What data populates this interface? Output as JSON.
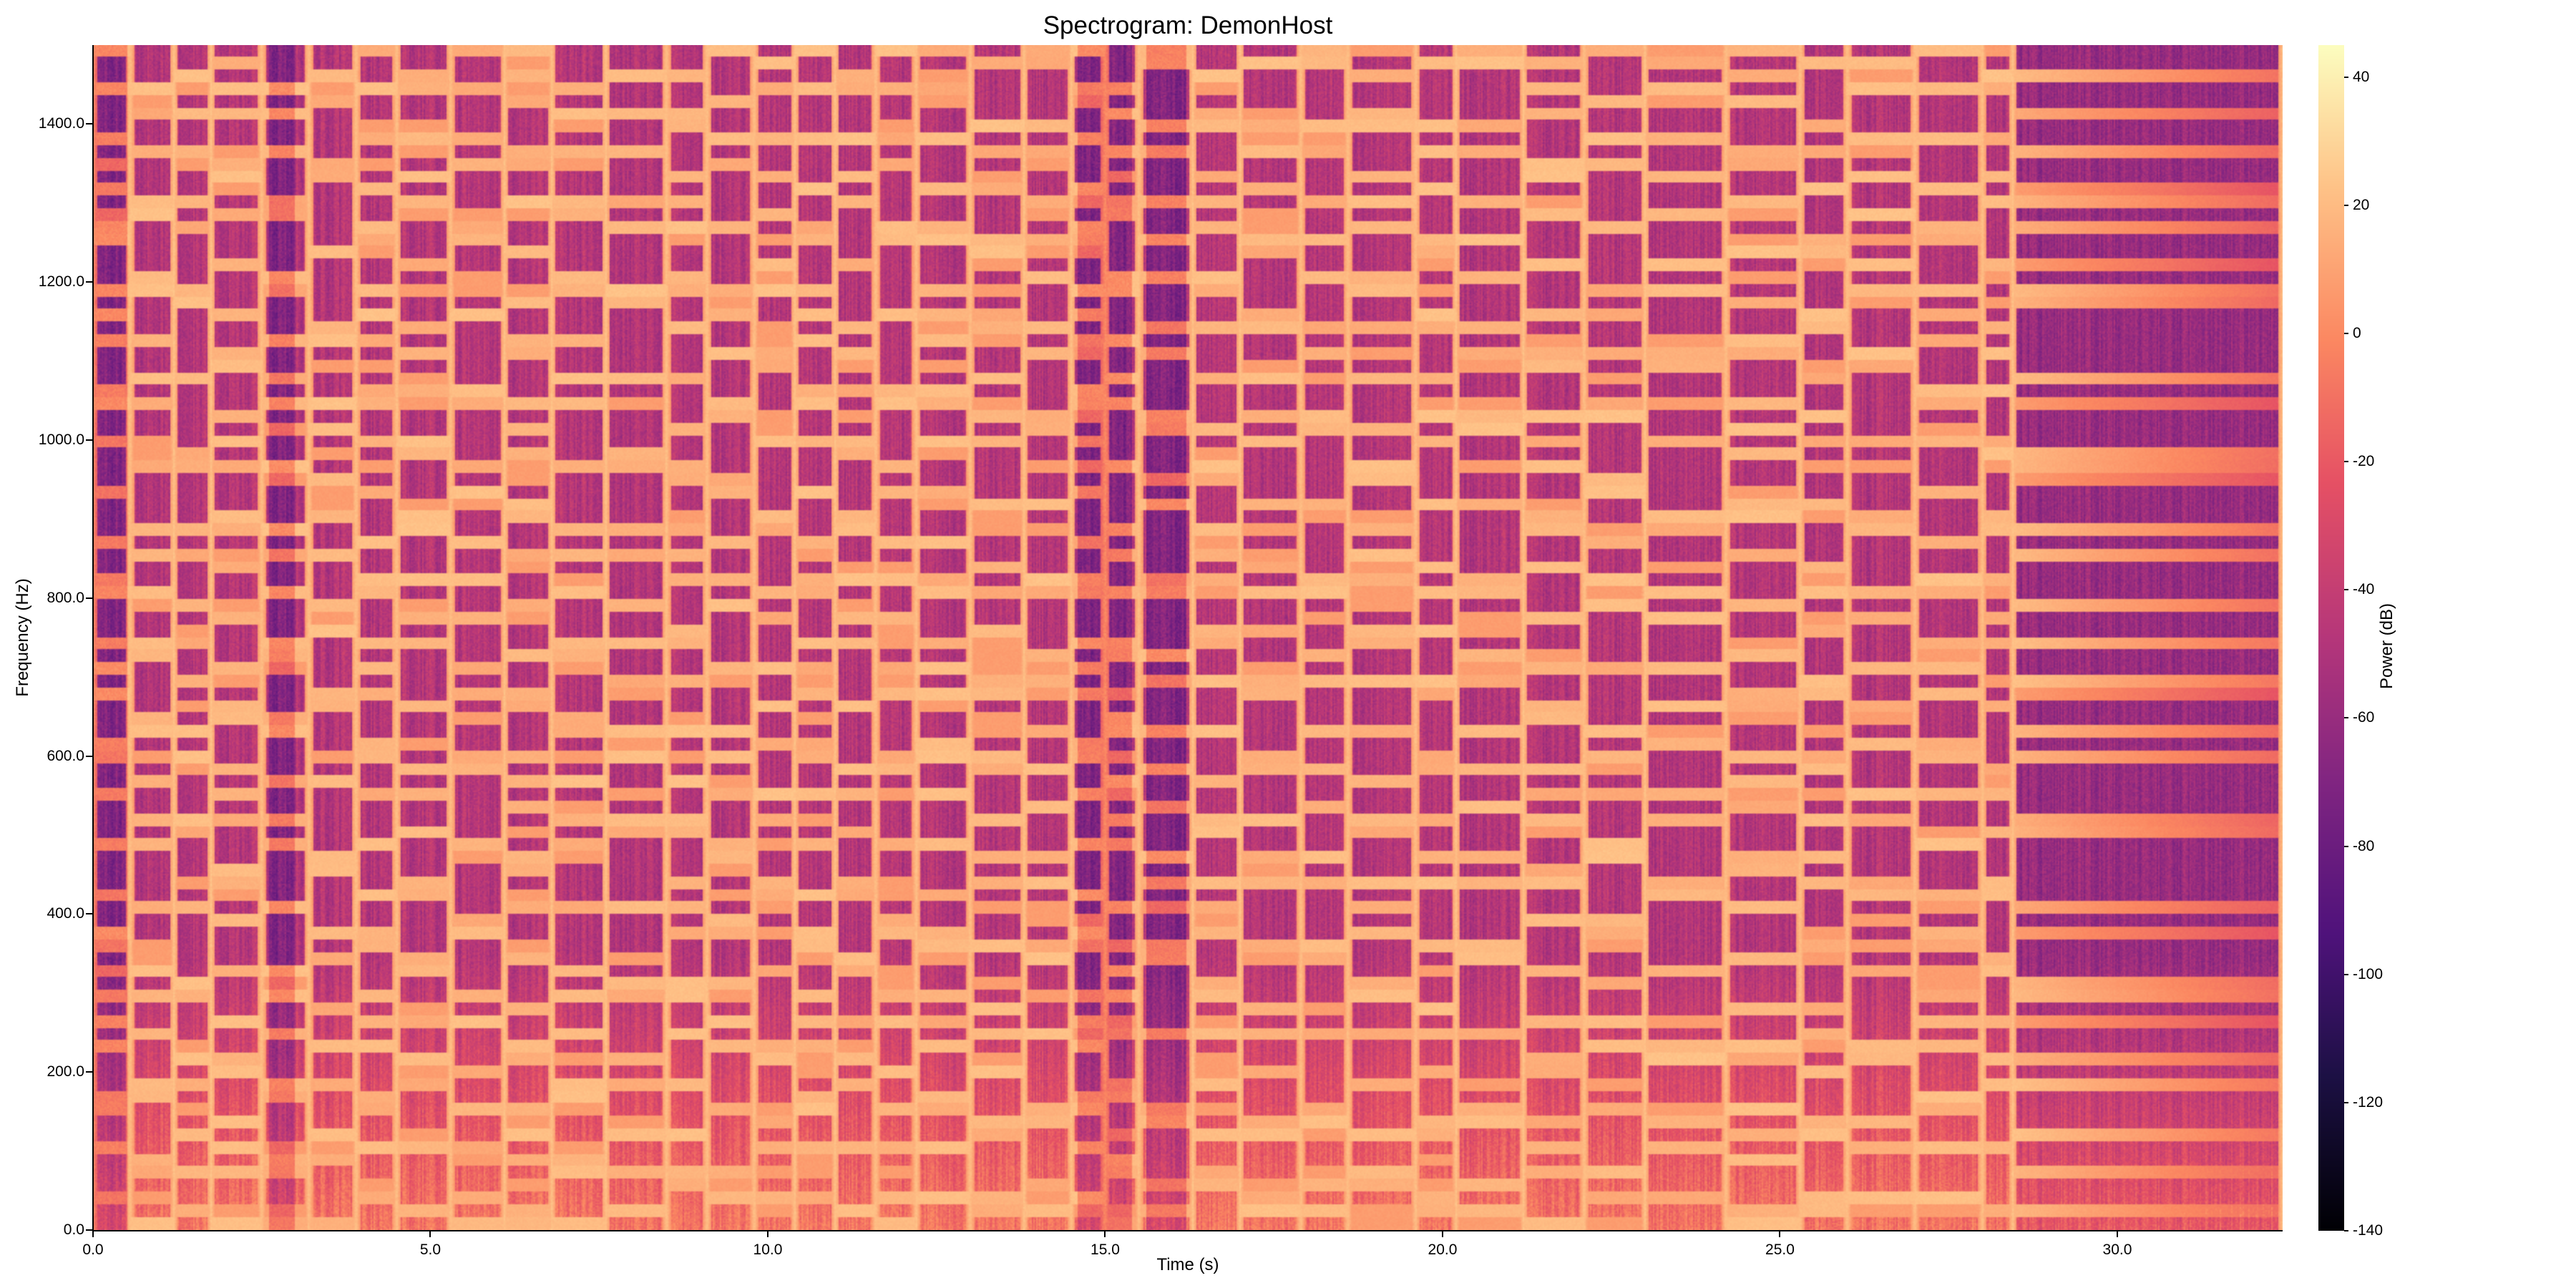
{
  "title": "Spectrogram: DemonHost",
  "x_axis": {
    "label": "Time (s)",
    "ticks": [
      {
        "value": 0,
        "label": "0.0"
      },
      {
        "value": 5,
        "label": "5.0"
      },
      {
        "value": 10,
        "label": "10.0"
      },
      {
        "value": 15,
        "label": "15.0"
      },
      {
        "value": 20,
        "label": "20.0"
      },
      {
        "value": 25,
        "label": "25.0"
      },
      {
        "value": 30,
        "label": "30.0"
      }
    ]
  },
  "y_axis": {
    "label": "Frequency (Hz)",
    "ticks": [
      {
        "value": 0,
        "label": "0.0"
      },
      {
        "value": 200,
        "label": "200.0"
      },
      {
        "value": 400,
        "label": "400.0"
      },
      {
        "value": 600,
        "label": "600.0"
      },
      {
        "value": 800,
        "label": "800.0"
      },
      {
        "value": 1000,
        "label": "1000.0"
      },
      {
        "value": 1200,
        "label": "1200.0"
      },
      {
        "value": 1400,
        "label": "1400.0"
      }
    ]
  },
  "colorbar": {
    "label": "Power (dB)",
    "colormap": "magma",
    "ticks": [
      {
        "value": 40,
        "label": "40"
      },
      {
        "value": 20,
        "label": "20"
      },
      {
        "value": 0,
        "label": "0"
      },
      {
        "value": -20,
        "label": "-20"
      },
      {
        "value": -40,
        "label": "-40"
      },
      {
        "value": -60,
        "label": "-60"
      },
      {
        "value": -80,
        "label": "-80"
      },
      {
        "value": -100,
        "label": "-100"
      },
      {
        "value": -120,
        "label": "-120"
      },
      {
        "value": -140,
        "label": "-140"
      }
    ]
  },
  "chart_data": {
    "type": "heatmap",
    "subtype": "spectrogram",
    "title": "Spectrogram: DemonHost",
    "xlabel": "Time (s)",
    "ylabel": "Frequency (Hz)",
    "colorbar_label": "Power (dB)",
    "colormap": "magma",
    "xlim": [
      0,
      32.45
    ],
    "ylim": [
      0,
      1500
    ],
    "clim": [
      -140,
      45
    ],
    "grid": false,
    "x_ticks": [
      0,
      5,
      10,
      15,
      20,
      25,
      30
    ],
    "y_ticks": [
      0,
      200,
      400,
      600,
      800,
      1000,
      1200,
      1400
    ],
    "colorbar_ticks": [
      40,
      20,
      0,
      -20,
      -40,
      -60,
      -80,
      -100,
      -120,
      -140
    ],
    "segment_boundaries_s": [
      0,
      0.55,
      1.2,
      1.75,
      2.5,
      3.2,
      3.9,
      4.5,
      5.3,
      6.1,
      6.8,
      7.6,
      8.5,
      9.1,
      9.8,
      10.4,
      11.0,
      11.6,
      12.2,
      13.0,
      13.8,
      14.5,
      15.0,
      15.5,
      16.3,
      17.0,
      17.9,
      18.6,
      19.6,
      20.2,
      21.2,
      22.1,
      23.0,
      24.2,
      25.3,
      26.0,
      27.0,
      28.0,
      28.45,
      32.45
    ],
    "dark_transient_regions_s": [
      [
        0,
        0.5
      ],
      [
        2.6,
        3.0
      ],
      [
        14.6,
        15.4
      ],
      [
        15.6,
        16.2
      ]
    ],
    "sustained_tail": {
      "start_s": 28.45,
      "end_s": 32.45,
      "decay": true
    },
    "band_height_hz": 32,
    "typical_levels_db": {
      "harmonic_band": 20,
      "background_low_freq": 0,
      "background_high_freq": -50,
      "tail_background": -60
    }
  }
}
